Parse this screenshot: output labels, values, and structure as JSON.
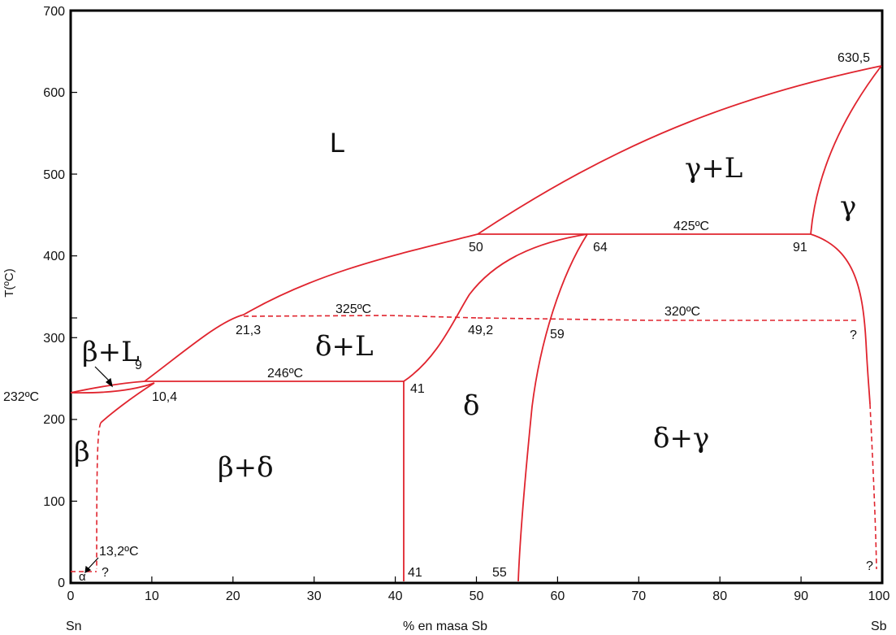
{
  "axes": {
    "y_label": "T(ºC)",
    "x_label": "% en masa Sb",
    "left_element": "Sn",
    "right_element": "Sb",
    "x_ticks": [
      "0",
      "10",
      "20",
      "30",
      "40",
      "50",
      "60",
      "70",
      "80",
      "90",
      "100"
    ],
    "y_ticks": [
      "0",
      "100",
      "200",
      "300",
      "400",
      "500",
      "600",
      "700"
    ]
  },
  "regions": {
    "liquid": "L",
    "gamma_liquid": "γ+L",
    "gamma": "γ",
    "beta_liquid": "β+L",
    "delta_liquid": "δ+L",
    "delta": "δ",
    "beta": "β",
    "beta_delta": "β+δ",
    "delta_gamma": "δ+γ",
    "alpha": "α"
  },
  "temperatures": {
    "sb_melting": "630,5",
    "t425": "425ºC",
    "t325": "325ºC",
    "t320": "320ºC",
    "t246": "246ºC",
    "sn_melting": "232ºC",
    "t13": "13,2ºC"
  },
  "compositions": {
    "c50": "50",
    "c64": "64",
    "c91": "91",
    "c21": "21,3",
    "c49": "49,2",
    "c59": "59",
    "c9": "9",
    "c10": "10,4",
    "c41_top": "41",
    "c41_bottom": "41",
    "c55": "55",
    "q1": "?",
    "q2": "?",
    "q3": "?"
  },
  "colors": {
    "phase_lines": "#e0242e",
    "frame": "#000000"
  }
}
